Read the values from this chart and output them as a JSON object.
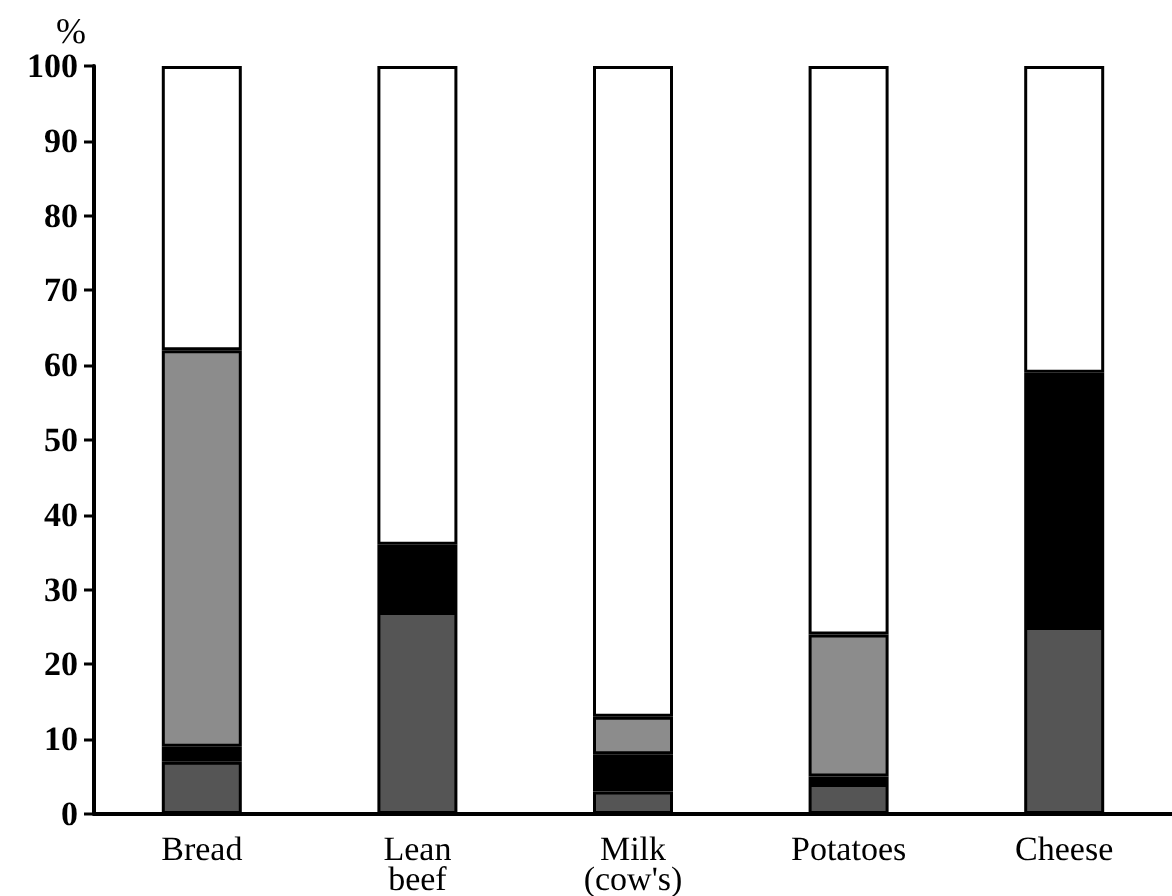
{
  "chart_data": {
    "type": "bar",
    "stacked": true,
    "ylabel": "%",
    "categories": [
      "Bread",
      "Lean beef",
      "Milk (cow's)",
      "Potatoes",
      "Cheese"
    ],
    "series": [
      {
        "color": "#555555",
        "values": [
          7,
          27,
          3,
          4,
          25
        ]
      },
      {
        "color": "#000000",
        "values": [
          2,
          9,
          5,
          1,
          34
        ]
      },
      {
        "color": "#8c8c8c",
        "values": [
          53,
          null,
          5,
          19,
          null
        ]
      },
      {
        "color": "#ffffff",
        "values": [
          38,
          64,
          87,
          76,
          41
        ]
      }
    ],
    "ylim": [
      0,
      100
    ],
    "yticks": [
      0,
      10,
      20,
      30,
      40,
      50,
      60,
      70,
      80,
      90,
      100
    ]
  }
}
